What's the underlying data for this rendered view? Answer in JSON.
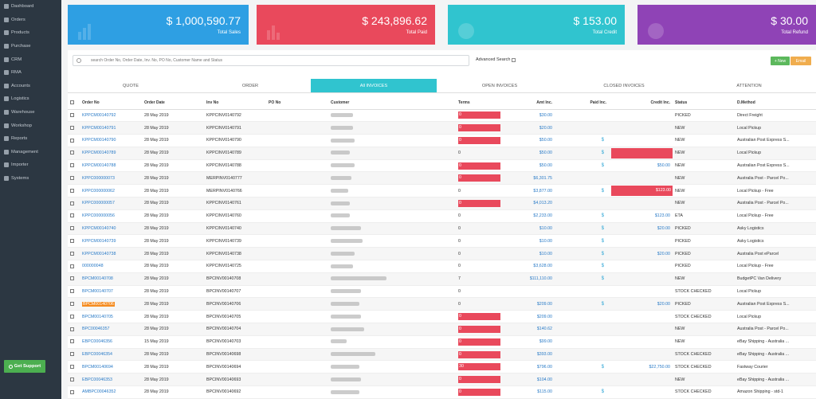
{
  "sidebar": {
    "items": [
      {
        "label": "Dashboard",
        "icon": "dashboard-icon"
      },
      {
        "label": "Orders",
        "icon": "orders-icon"
      },
      {
        "label": "Products",
        "icon": "products-icon"
      },
      {
        "label": "Purchase",
        "icon": "purchase-icon"
      },
      {
        "label": "CRM",
        "icon": "crm-icon"
      },
      {
        "label": "RMA",
        "icon": "rma-icon"
      },
      {
        "label": "Accounts",
        "icon": "accounts-icon"
      },
      {
        "label": "Logistics",
        "icon": "logistics-icon"
      },
      {
        "label": "Warehouse",
        "icon": "warehouse-icon"
      },
      {
        "label": "Workshop",
        "icon": "workshop-icon"
      },
      {
        "label": "Reports",
        "icon": "reports-icon"
      },
      {
        "label": "Management",
        "icon": "management-icon"
      },
      {
        "label": "Importer",
        "icon": "importer-icon"
      },
      {
        "label": "Systems",
        "icon": "systems-icon"
      }
    ],
    "support_label": "Get Support"
  },
  "cards": [
    {
      "value": "$ 1,000,590.77",
      "label": "Total Sales",
      "color": "#2e9fe3"
    },
    {
      "value": "$ 243,896.62",
      "label": "Total Paid",
      "color": "#e9495c"
    },
    {
      "value": "$ 153.00",
      "label": "Total Credit",
      "color": "#30c4cf"
    },
    {
      "value": "$ 30.00",
      "label": "Total Refund",
      "color": "#8f43b6"
    }
  ],
  "search": {
    "placeholder": "search Order No, Order Date, Inv. No, PO No, Customer Name and Status"
  },
  "advanced_label": "Advanced Search",
  "buttons": {
    "new": "+ New",
    "email": "Email"
  },
  "tabs": [
    "QUOTE",
    "ORDER",
    "All INVOICES",
    "OPEN INVOICES",
    "CLOSED INVOICES",
    "ATTENTION"
  ],
  "columns": {
    "order_no": "Order No",
    "order_date": "Order Date",
    "inv_no": "Inv No",
    "po_no": "PO No",
    "customer": "Customer",
    "terms": "Terms",
    "amt": "Amt Inc.",
    "paid": "Paid Inc.",
    "credit": "Credit Inc.",
    "status": "Status",
    "dmethod": "D.Method"
  },
  "rows": [
    {
      "order_no": "KPPCM00140792",
      "date": "28 May 2019",
      "inv": "KPPCINV0140792",
      "terms": "0",
      "terms_flag": true,
      "amt": "$30.00",
      "paid": "",
      "credit": "",
      "credit_flag": false,
      "status": "PICKED",
      "method": "Direct Freight"
    },
    {
      "order_no": "KPPCM00140791",
      "date": "28 May 2019",
      "inv": "KPPCINV0140791",
      "terms": "0",
      "terms_flag": true,
      "amt": "$20.00",
      "paid": "",
      "credit": "",
      "credit_flag": false,
      "status": "NEW",
      "method": "Local Pickup"
    },
    {
      "order_no": "KPPCM00140790",
      "date": "28 May 2019",
      "inv": "KPPCINV0140790",
      "terms": "0",
      "terms_flag": true,
      "amt": "$50.00",
      "paid": "$",
      "credit": "",
      "credit_flag": false,
      "status": "NEW",
      "method": "Australian Post Express S..."
    },
    {
      "order_no": "KPPCM00140789",
      "date": "28 May 2019",
      "inv": "KPPCINV0140789",
      "terms": "0",
      "terms_flag": false,
      "amt": "$50.00",
      "paid": "$",
      "credit": "",
      "credit_flag": true,
      "status": "NEW",
      "method": "Local Pickup"
    },
    {
      "order_no": "KPPCM00140788",
      "date": "28 May 2019",
      "inv": "KPPCINV0140788",
      "terms": "0",
      "terms_flag": true,
      "amt": "$50.00",
      "paid": "$",
      "credit": "$50.00",
      "credit_flag": false,
      "status": "NEW",
      "method": "Australian Post Express S..."
    },
    {
      "order_no": "KPPC000000073",
      "date": "28 May 2019",
      "inv": "MERPINV0140777",
      "terms": "0",
      "terms_flag": true,
      "amt": "$6,301.75",
      "paid": "",
      "credit": "",
      "credit_flag": false,
      "status": "NEW",
      "method": "Australia Post - Parcel Po..."
    },
    {
      "order_no": "KPPC000000062",
      "date": "28 May 2019",
      "inv": "MERPINV0140766",
      "terms": "0",
      "terms_flag": false,
      "amt": "$3,877.00",
      "paid": "$",
      "credit": "$123.00",
      "credit_flag": true,
      "status": "NEW",
      "method": "Local Pickup - Free"
    },
    {
      "order_no": "KPPC000000057",
      "date": "28 May 2019",
      "inv": "KPPCINV0140761",
      "terms": "0",
      "terms_flag": true,
      "amt": "$4,013.20",
      "paid": "",
      "credit": "",
      "credit_flag": false,
      "status": "NEW",
      "method": "Australia Post - Parcel Po..."
    },
    {
      "order_no": "KPPC000000056",
      "date": "28 May 2019",
      "inv": "KPPCINV0140760",
      "terms": "0",
      "terms_flag": false,
      "amt": "$2,233.00",
      "paid": "$",
      "credit": "$123.00",
      "credit_flag": false,
      "status": "ETA",
      "method": "Local Pickup - Free"
    },
    {
      "order_no": "KPPCM00140740",
      "date": "28 May 2019",
      "inv": "KPPCINV0140740",
      "terms": "0",
      "terms_flag": false,
      "amt": "$10.00",
      "paid": "$",
      "credit": "$20.00",
      "credit_flag": false,
      "status": "PICKED",
      "method": "Asky Logistics"
    },
    {
      "order_no": "KPPCM00140739",
      "date": "28 May 2019",
      "inv": "KPPCINV0140739",
      "terms": "0",
      "terms_flag": false,
      "amt": "$10.00",
      "paid": "$",
      "credit": "",
      "credit_flag": false,
      "status": "PICKED",
      "method": "Asky Logistics"
    },
    {
      "order_no": "KPPCM00140738",
      "date": "28 May 2019",
      "inv": "KPPCINV0140738",
      "terms": "0",
      "terms_flag": false,
      "amt": "$10.00",
      "paid": "$",
      "credit": "$20.00",
      "credit_flag": false,
      "status": "PICKED",
      "method": "Australia Post eParcel"
    },
    {
      "order_no": "000000048",
      "date": "28 May 2019",
      "inv": "KPPCINV0140725",
      "terms": "0",
      "terms_flag": false,
      "amt": "$3,628.00",
      "paid": "$",
      "credit": "",
      "credit_flag": false,
      "status": "PICKED",
      "method": "Local Pickup - Free"
    },
    {
      "order_no": "BPCM00140708",
      "date": "28 May 2019",
      "inv": "BPCINV00140708",
      "terms": "7",
      "terms_flag": false,
      "amt": "$111,110.00",
      "paid": "$",
      "credit": "",
      "credit_flag": false,
      "status": "NEW",
      "method": "BudgetPC Van Delivery"
    },
    {
      "order_no": "BPCM00140707",
      "date": "28 May 2019",
      "inv": "BPCINV00140707",
      "terms": "0",
      "terms_flag": false,
      "amt": "",
      "paid": "",
      "credit": "",
      "credit_flag": false,
      "status": "STOCK CHECKED",
      "method": "Local Pickup"
    },
    {
      "order_no": "BPCM00140706",
      "date": "28 May 2019",
      "inv": "BPCINV00140706",
      "terms": "0",
      "terms_flag": false,
      "amt": "$209.00",
      "paid": "$",
      "credit": "$20.00",
      "credit_flag": false,
      "status": "PICKED",
      "method": "Australian Post Express S...",
      "highlight": true
    },
    {
      "order_no": "BPCM00140705",
      "date": "28 May 2019",
      "inv": "BPCINV00140705",
      "terms": "0",
      "terms_flag": true,
      "amt": "$209.00",
      "paid": "",
      "credit": "",
      "credit_flag": false,
      "status": "STOCK CHECKED",
      "method": "Local Pickup"
    },
    {
      "order_no": "BPC00046357",
      "date": "28 May 2019",
      "inv": "BPCINV00140704",
      "terms": "0",
      "terms_flag": true,
      "amt": "$140.62",
      "paid": "",
      "credit": "",
      "credit_flag": false,
      "status": "NEW",
      "method": "Australia Post - Parcel Po..."
    },
    {
      "order_no": "EBPC00046356",
      "date": "15 May 2019",
      "inv": "BPCINV00140703",
      "terms": "0",
      "terms_flag": true,
      "amt": "$99.00",
      "paid": "",
      "credit": "",
      "credit_flag": false,
      "status": "NEW",
      "method": "eBay Shipping - Australia ..."
    },
    {
      "order_no": "EBPC00046354",
      "date": "28 May 2019",
      "inv": "BPCINV00140698",
      "terms": "0",
      "terms_flag": true,
      "amt": "$393.00",
      "paid": "",
      "credit": "",
      "credit_flag": false,
      "status": "STOCK CHECKED",
      "method": "eBay Shipping - Australia ..."
    },
    {
      "order_no": "BPCM00140694",
      "date": "28 May 2019",
      "inv": "BPCINV00140694",
      "terms": "30",
      "terms_flag": true,
      "amt": "$796.00",
      "paid": "$",
      "credit": "$22,750.00",
      "credit_flag": false,
      "status": "STOCK CHECKED",
      "method": "Fastway Courier"
    },
    {
      "order_no": "EBPC00046353",
      "date": "28 May 2019",
      "inv": "BPCINV00140693",
      "terms": "0",
      "terms_flag": true,
      "amt": "$104.00",
      "paid": "",
      "credit": "",
      "credit_flag": false,
      "status": "NEW",
      "method": "eBay Shipping - Australia ..."
    },
    {
      "order_no": "AMBPC00046352",
      "date": "28 May 2019",
      "inv": "BPCINV00140692",
      "terms": "0",
      "terms_flag": true,
      "amt": "$115.00",
      "paid": "$",
      "credit": "",
      "credit_flag": false,
      "status": "STOCK CHECKED",
      "method": "Amazon Shipping - std-1"
    }
  ]
}
